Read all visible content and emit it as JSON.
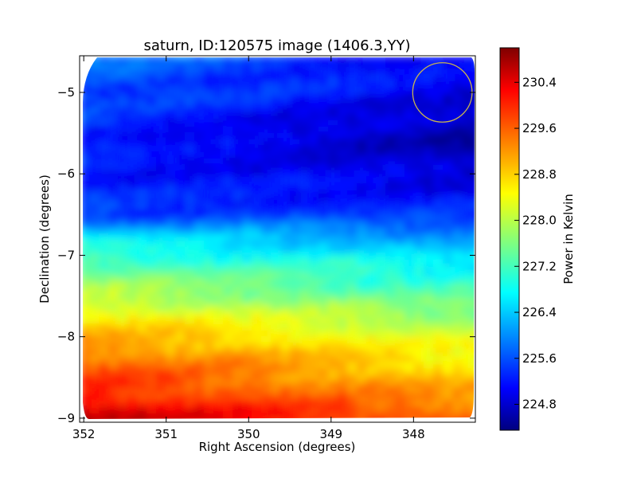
{
  "chart_data": {
    "type": "heatmap",
    "title": "saturn, ID:120575 image (1406.3,YY)",
    "xlabel": "Right Ascension (degrees)",
    "ylabel": "Declination (degrees)",
    "xlim": [
      352.05,
      347.25
    ],
    "ylim": [
      -9.05,
      -4.55
    ],
    "x_ticks": [
      352,
      351,
      350,
      349,
      348
    ],
    "x_tick_labels": [
      "352",
      "351",
      "350",
      "349",
      "348"
    ],
    "y_ticks": [
      -5,
      -6,
      -7,
      -8,
      -9
    ],
    "y_tick_labels": [
      "−5",
      "−6",
      "−7",
      "−8",
      "−9"
    ],
    "x_axis_reversed": true,
    "colorbar": {
      "label": "Power in Kelvin",
      "range": [
        224.35,
        231.0
      ],
      "ticks": [
        224.8,
        225.6,
        226.4,
        227.2,
        228.0,
        228.8,
        229.6,
        230.4
      ],
      "tick_labels": [
        "224.8",
        "225.6",
        "226.4",
        "227.2",
        "228.0",
        "228.8",
        "229.6",
        "230.4"
      ],
      "colormap": "jet"
    },
    "approx_value_by_declination": {
      "dec": [
        -4.7,
        -5.0,
        -5.5,
        -6.0,
        -6.5,
        -6.8,
        -7.2,
        -7.6,
        -8.0,
        -8.4,
        -8.8,
        -8.95
      ],
      "power_left": [
        225.9,
        225.7,
        225.4,
        225.3,
        225.6,
        226.8,
        227.6,
        228.3,
        229.1,
        229.7,
        230.2,
        230.6
      ],
      "power_right": [
        225.1,
        225.0,
        224.6,
        224.9,
        225.4,
        226.2,
        226.9,
        227.5,
        228.2,
        228.7,
        229.2,
        229.5
      ]
    },
    "annotations": [
      {
        "type": "circle",
        "ra": 347.65,
        "dec": -5.0,
        "radius_deg": 0.36,
        "color": "#c8b450"
      }
    ],
    "grid": false
  }
}
